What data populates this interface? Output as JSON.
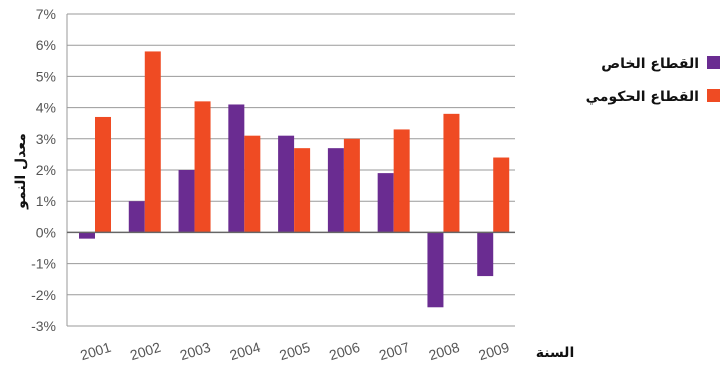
{
  "chart_data": {
    "type": "bar",
    "categories": [
      "2001",
      "2002",
      "2003",
      "2004",
      "2005",
      "2006",
      "2007",
      "2008",
      "2009"
    ],
    "series": [
      {
        "name": "القطاع الخاص",
        "color": "#6a2c91",
        "values": [
          -0.2,
          1.0,
          2.0,
          4.1,
          3.1,
          2.7,
          1.9,
          -2.4,
          -1.4
        ]
      },
      {
        "name": "القطاع الحكومي",
        "color": "#ef4b23",
        "values": [
          3.7,
          5.8,
          4.2,
          3.1,
          2.7,
          3.0,
          3.3,
          3.8,
          2.4
        ]
      }
    ],
    "y_ticks": [
      "7%",
      "6%",
      "5%",
      "4%",
      "3%",
      "2%",
      "1%",
      "0%",
      "-1%",
      "-2%",
      "-3%"
    ],
    "ylim": [
      -3,
      7
    ],
    "xlabel": "السنة",
    "ylabel": "معدل النمو",
    "grid": true,
    "legend_position": "right"
  }
}
